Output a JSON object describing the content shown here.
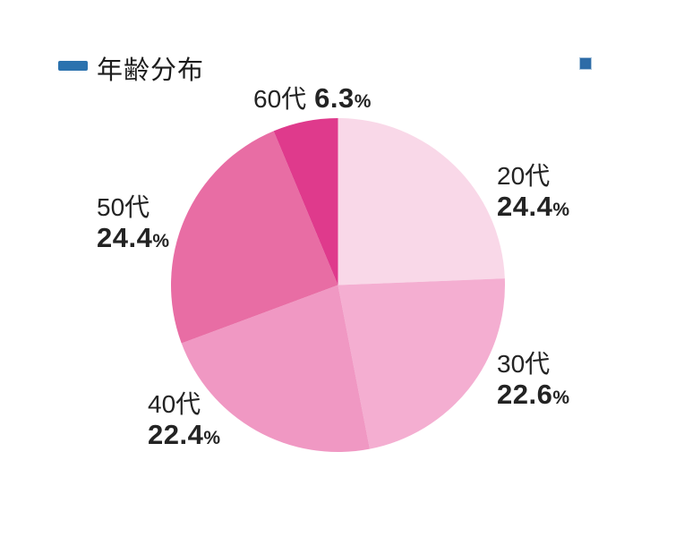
{
  "header": {
    "title": "年齢分布",
    "accent_color": "#2b72ae"
  },
  "decor": {
    "corner_square_color": "#2d6ca7"
  },
  "chart_data": {
    "type": "pie",
    "title": "年齢分布",
    "categories": [
      "20代",
      "30代",
      "40代",
      "50代",
      "60代"
    ],
    "values": [
      24.4,
      22.6,
      22.4,
      24.4,
      6.3
    ],
    "unit": "%",
    "colors": [
      "#f9d8e8",
      "#f4aed1",
      "#f098c3",
      "#e86da4",
      "#df3a8c"
    ],
    "start_angle_deg": 0,
    "direction": "clockwise",
    "legend_position": "none",
    "labels": [
      {
        "name": "20代",
        "value": "24.4",
        "unit": "%"
      },
      {
        "name": "30代",
        "value": "22.6",
        "unit": "%"
      },
      {
        "name": "40代",
        "value": "22.4",
        "unit": "%"
      },
      {
        "name": "50代",
        "value": "24.4",
        "unit": "%"
      },
      {
        "name": "60代",
        "value": "6.3",
        "unit": "%"
      }
    ]
  }
}
